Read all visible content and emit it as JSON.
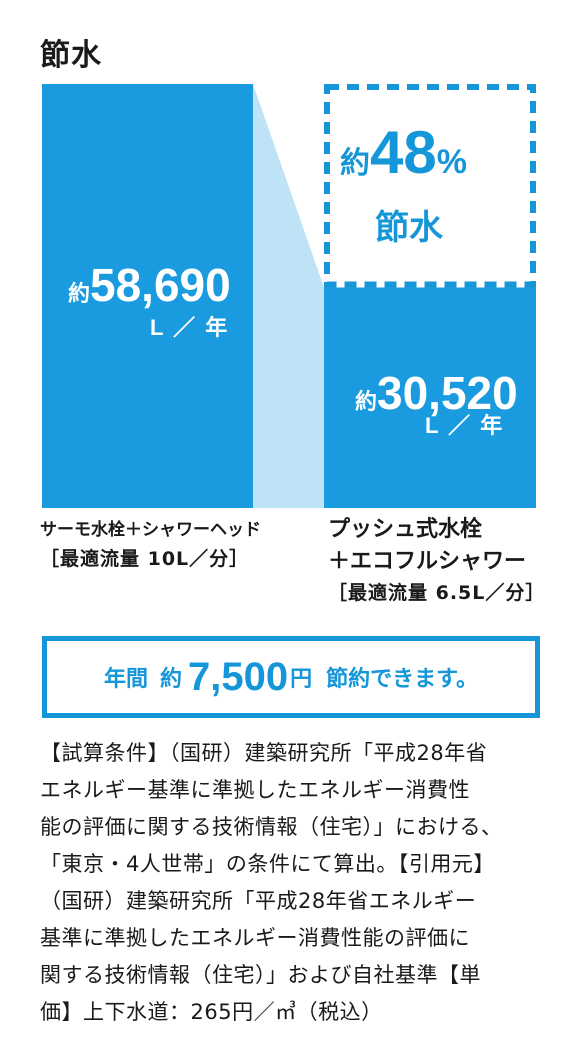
{
  "title": "節水",
  "colors": {
    "bar": "#1a9be0",
    "connector": "#bfe3f6",
    "accent": "#1596d8",
    "text": "#1a1a1a"
  },
  "chart_data": {
    "type": "bar",
    "title": "節水",
    "categories": [
      "サーモ水栓＋シャワーヘッド",
      "プッシュ式水栓＋エコフルシャワー"
    ],
    "values": [
      58690,
      30520
    ],
    "unit": "L／年",
    "value_labels": [
      {
        "prefix": "約",
        "number": "58,690",
        "unit": "L ／ 年"
      },
      {
        "prefix": "約",
        "number": "30,520",
        "unit": "L ／ 年"
      }
    ],
    "category_labels": [
      {
        "line1": "サーモ水栓＋シャワーヘッド",
        "line2": "",
        "sub": "［最適流量 10L／分］"
      },
      {
        "line1": "プッシュ式水栓",
        "line2": "＋エコフルシャワー",
        "sub": "［最適流量 6.5L／分］"
      }
    ],
    "annotation": {
      "prefix": "約",
      "percent": "48",
      "percent_sign": "%",
      "caption": "節水"
    },
    "ylim": [
      0,
      58690
    ]
  },
  "banner": {
    "label1": "年間",
    "prefix": "約",
    "amount": "7,500",
    "yen": "円",
    "suffix": "節約できます。"
  },
  "notes": [
    "【試算条件】（国研）建築研究所「平成28年省",
    "エネルギー基準に準拠したエネルギー消費性",
    "能の評価に関する技術情報（住宅）」における、",
    "「東京・4人世帯」の条件にて算出。【引用元】",
    "（国研）建築研究所「平成28年省エネルギー",
    "基準に準拠したエネルギー消費性能の評価に",
    "関する技術情報（住宅）」および自社基準【単",
    "価】上下水道：265円／㎥（税込）"
  ]
}
